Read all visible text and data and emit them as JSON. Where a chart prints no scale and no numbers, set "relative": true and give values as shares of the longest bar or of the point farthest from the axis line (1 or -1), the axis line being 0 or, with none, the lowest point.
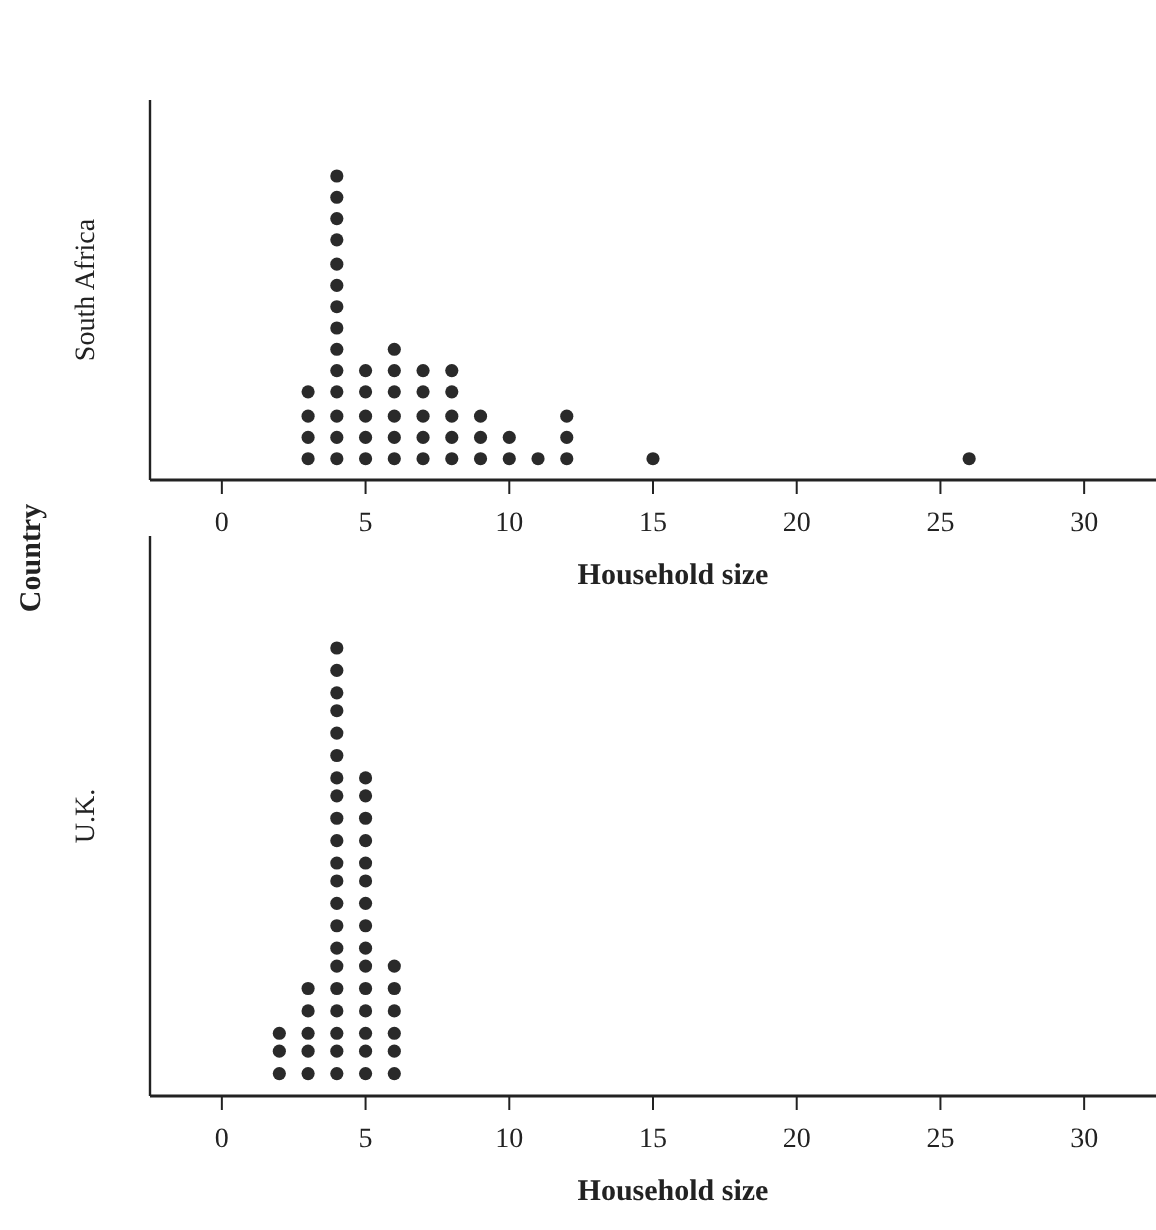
{
  "chart_data": [
    {
      "type": "scatter",
      "ylabel": "South Africa",
      "xlabel": "Household size",
      "annotations": [
        "Country"
      ],
      "marker": "circle",
      "tick_labels": "x",
      "relative": true,
      "xlim": [
        -2.5,
        32.5
      ],
      "xticks": [
        0,
        5,
        10,
        15,
        20,
        25,
        30
      ],
      "series": [
        {
          "color": "#2a2a2a",
          "x": [
            3,
            3,
            3,
            3,
            4,
            4,
            4,
            4,
            4,
            4,
            4,
            4,
            4,
            4,
            4,
            4,
            4,
            4,
            5,
            5,
            5,
            5,
            5,
            6,
            6,
            6,
            6,
            6,
            6,
            7,
            7,
            7,
            7,
            7,
            8,
            8,
            8,
            8,
            8,
            9,
            9,
            9,
            10,
            10,
            11,
            12,
            12,
            12,
            15,
            26
          ],
          "values": [
            0.07,
            0.14,
            0.21,
            0.29,
            0.07,
            0.14,
            0.21,
            0.29,
            0.36,
            0.43,
            0.5,
            0.57,
            0.64,
            0.71,
            0.79,
            0.86,
            0.93,
            1,
            0.07,
            0.14,
            0.21,
            0.29,
            0.36,
            0.07,
            0.14,
            0.21,
            0.29,
            0.36,
            0.43,
            0.07,
            0.14,
            0.21,
            0.29,
            0.36,
            0.07,
            0.14,
            0.21,
            0.29,
            0.36,
            0.07,
            0.14,
            0.21,
            0.07,
            0.14,
            0.07,
            0.07,
            0.14,
            0.21,
            0.07,
            0.07
          ]
        }
      ]
    },
    {
      "type": "scatter",
      "ylabel": "U.K.",
      "xlabel": "Household size",
      "marker": "circle",
      "tick_labels": "x",
      "relative": true,
      "xlim": [
        -2.5,
        32.5
      ],
      "xticks": [
        0,
        5,
        10,
        15,
        20,
        25,
        30
      ],
      "series": [
        {
          "color": "#2a2a2a",
          "x": [
            2,
            2,
            2,
            3,
            3,
            3,
            3,
            3,
            4,
            4,
            4,
            4,
            4,
            4,
            4,
            4,
            4,
            4,
            4,
            4,
            4,
            4,
            4,
            4,
            4,
            4,
            4,
            4,
            4,
            5,
            5,
            5,
            5,
            5,
            5,
            5,
            5,
            5,
            5,
            5,
            5,
            5,
            5,
            5,
            6,
            6,
            6,
            6,
            6,
            6
          ],
          "values": [
            0.05,
            0.1,
            0.14,
            0.05,
            0.1,
            0.14,
            0.19,
            0.24,
            0.05,
            0.1,
            0.14,
            0.19,
            0.24,
            0.29,
            0.33,
            0.38,
            0.43,
            0.48,
            0.52,
            0.57,
            0.62,
            0.67,
            0.71,
            0.76,
            0.81,
            0.86,
            0.9,
            0.95,
            1,
            0.05,
            0.1,
            0.14,
            0.19,
            0.24,
            0.29,
            0.33,
            0.38,
            0.43,
            0.48,
            0.52,
            0.57,
            0.62,
            0.67,
            0.71,
            0.05,
            0.1,
            0.14,
            0.19,
            0.24,
            0.29
          ]
        }
      ]
    }
  ]
}
